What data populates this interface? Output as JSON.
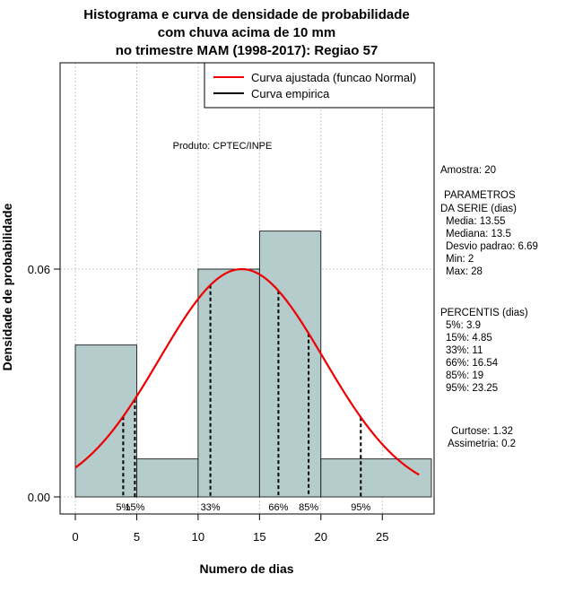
{
  "chart_data": {
    "type": "bar",
    "title_lines": [
      "Histograma e curva de densidade de probabilidade",
      "com chuva acima de 10 mm",
      "no trimestre MAM (1998-2017): Regiao 57"
    ],
    "xlabel": "Numero de dias",
    "ylabel": "Densidade de probabilidade",
    "xlim": [
      -1,
      29
    ],
    "ylim": [
      -0.005,
      0.115
    ],
    "x_ticks": [
      0,
      5,
      10,
      15,
      20,
      25
    ],
    "y_ticks": [
      0.0,
      0.06
    ],
    "y_tick_labels": [
      "0.00",
      "0.06"
    ],
    "bins": [
      {
        "x0": 0,
        "x1": 5,
        "density": 0.04
      },
      {
        "x0": 5,
        "x1": 10,
        "density": 0.01
      },
      {
        "x0": 10,
        "x1": 15,
        "density": 0.06
      },
      {
        "x0": 15,
        "x1": 20,
        "density": 0.07
      },
      {
        "x0": 20,
        "x1": 29,
        "density": 0.01
      }
    ],
    "normal_curve": {
      "mean": 13.55,
      "sd": 6.69,
      "x_from": 0,
      "x_to": 28,
      "peak_density": 0.06
    },
    "percentile_markers": [
      {
        "label": "5%",
        "x": 3.9
      },
      {
        "label": "15%",
        "x": 4.85
      },
      {
        "label": "33%",
        "x": 11
      },
      {
        "label": "66%",
        "x": 16.54
      },
      {
        "label": "85%",
        "x": 19
      },
      {
        "label": "95%",
        "x": 23.25
      }
    ],
    "legend": [
      {
        "label": "Curva ajustada (funcao Normal)",
        "color": "#ee0000"
      },
      {
        "label": "Curva empirica",
        "color": "#000000"
      }
    ],
    "credit": "Produto: CPTEC/INPE",
    "stats_lines": [
      "Amostra: 20",
      "PARAMETROS",
      "DA SERIE (dias)",
      "Media: 13.55",
      "Mediana: 13.5",
      "Desvio padrao: 6.69",
      "Min: 2",
      "Max: 28",
      "PERCENTIS (dias)",
      "5%: 3.9",
      "15%: 4.85",
      "33%: 11",
      "66%: 16.54",
      "85%: 19",
      "95%: 23.25",
      "Curtose: 1.32",
      "Assimetria: 0.2"
    ],
    "colors": {
      "bar_fill": "#b4cccc",
      "bar_stroke": "#000000",
      "curve": "#ee0000",
      "grid": "#bbbbbb"
    }
  }
}
